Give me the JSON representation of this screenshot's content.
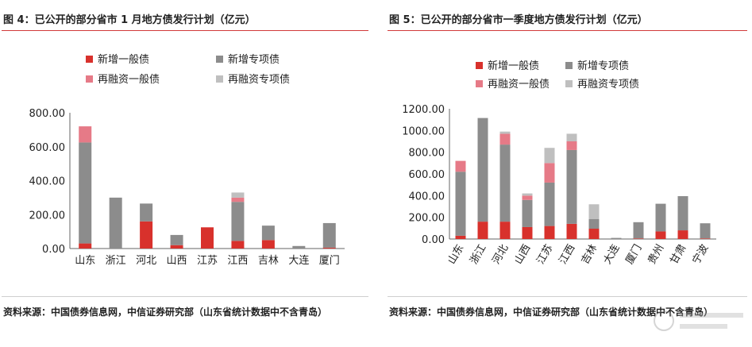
{
  "charts": [
    {
      "title": "图 4：已公开的部分省市 1 月地方债发行计划（亿元）",
      "source": "资料来源：中国债券信息网，中信证券研究部（山东省统计数据中不含青岛）",
      "chart_data_index": 0
    },
    {
      "title": "图 5：已公开的部分省市一季度地方债发行计划（亿元）",
      "source": "资料来源：中国债券信息网，中信证券研究部（山东省统计数据中不含青岛）",
      "chart_data_index": 1
    }
  ],
  "colors": {
    "新增一般债": "#d8312c",
    "新增专项债": "#8c8c8c",
    "再融资一般债": "#e67a87",
    "再融资专项债": "#bfbfbf",
    "title_rule": "#d23a3a"
  },
  "chart_data": [
    {
      "type": "bar",
      "stacked": true,
      "title": "图 4：已公开的部分省市 1 月地方债发行计划（亿元）",
      "categories": [
        "山东",
        "浙江",
        "河北",
        "山西",
        "江苏",
        "江西",
        "吉林",
        "大连",
        "厦门"
      ],
      "series": [
        {
          "name": "新增一般债",
          "values": [
            30,
            0,
            160,
            20,
            125,
            45,
            50,
            0,
            5
          ]
        },
        {
          "name": "新增专项债",
          "values": [
            595,
            300,
            105,
            60,
            0,
            230,
            85,
            15,
            145
          ]
        },
        {
          "name": "再融资一般债",
          "values": [
            95,
            0,
            0,
            0,
            0,
            25,
            0,
            0,
            0
          ]
        },
        {
          "name": "再融资专项债",
          "values": [
            0,
            0,
            0,
            0,
            0,
            30,
            0,
            0,
            0
          ]
        }
      ],
      "ylim": [
        0,
        800
      ],
      "yticks": [
        "0.00",
        "200.00",
        "400.00",
        "600.00",
        "800.00"
      ],
      "legend": "top",
      "grid": false
    },
    {
      "type": "bar",
      "stacked": true,
      "title": "图 5：已公开的部分省市一季度地方债发行计划（亿元）",
      "categories": [
        "山东",
        "浙江",
        "河北",
        "山西",
        "江苏",
        "江西",
        "吉林",
        "大连",
        "厦门",
        "贵州",
        "甘肃",
        "宁波"
      ],
      "series": [
        {
          "name": "新增一般债",
          "values": [
            30,
            160,
            160,
            110,
            120,
            140,
            95,
            0,
            5,
            70,
            80,
            5
          ]
        },
        {
          "name": "新增专项债",
          "values": [
            590,
            955,
            710,
            250,
            400,
            680,
            90,
            10,
            150,
            255,
            315,
            140
          ]
        },
        {
          "name": "再融资一般债",
          "values": [
            100,
            0,
            100,
            40,
            180,
            80,
            0,
            0,
            0,
            0,
            0,
            0
          ]
        },
        {
          "name": "再融资专项债",
          "values": [
            0,
            0,
            20,
            20,
            140,
            70,
            135,
            0,
            0,
            0,
            0,
            0
          ]
        }
      ],
      "ylim": [
        0,
        1200
      ],
      "yticks": [
        "0.00",
        "200.00",
        "400.00",
        "600.00",
        "800.00",
        "1000.00",
        "1200.00"
      ],
      "legend": "top",
      "grid": false
    }
  ]
}
